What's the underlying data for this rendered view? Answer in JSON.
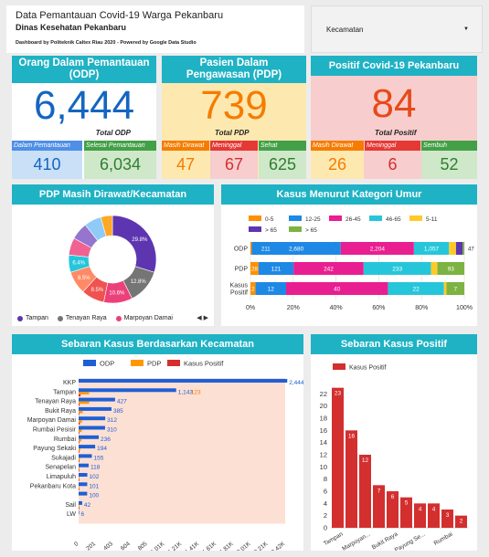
{
  "header": {
    "title": "Data Pemantauan Covid-19 Warga Pekanbaru",
    "subtitle": "Dinas Kesehatan Pekanbaru",
    "credit": "Dashboard by Politeknik Caltex Riau 2020 - Powered by Google Data Studio"
  },
  "filter": {
    "label": "Kecamatan"
  },
  "odp": {
    "title": "Orang Dalam Pemantauan (ODP)",
    "total": "6,444",
    "total_label": "Total ODP",
    "sub": [
      {
        "label": "Dalam Pemantauan",
        "value": "410"
      },
      {
        "label": "Selesai Pemantauan",
        "value": "6,034"
      }
    ]
  },
  "pdp": {
    "title": "Pasien Dalam Pengawasan (PDP)",
    "total": "739",
    "total_label": "Total PDP",
    "sub": [
      {
        "label": "Masih Dirawat",
        "value": "47"
      },
      {
        "label": "Meninggal",
        "value": "67"
      },
      {
        "label": "Sehat",
        "value": "625"
      }
    ]
  },
  "positif": {
    "title": "Positif Covid-19 Pekanbaru",
    "total": "84",
    "total_label": "Total Positif",
    "sub": [
      {
        "label": "Masih Dirawat",
        "value": "26"
      },
      {
        "label": "Meninggal",
        "value": "6"
      },
      {
        "label": "Sembuh",
        "value": "52"
      }
    ]
  },
  "colors": {
    "teal": "#1fb2c4",
    "blue": "#1565c0",
    "orange": "#f57c00",
    "red": "#d32f2f",
    "green": "#2e7d32"
  },
  "donut": {
    "title": "PDP Masih Dirawat/Kecamatan",
    "legend": [
      "Tampan",
      "Tenayan Raya",
      "Marpoyan Damai"
    ],
    "legend_colors": [
      "#5e35b1",
      "#757575",
      "#ec407a"
    ],
    "pager": "◀ ▶"
  },
  "umur": {
    "title": "Kasus Menurut Kategori Umur",
    "legend_text": [
      "0-5",
      "12-25",
      "26-45",
      "46-65",
      "5-11",
      "> 65",
      "> 65"
    ],
    "x_ticks": [
      "0%",
      "20%",
      "40%",
      "60%",
      "80%",
      "100%"
    ]
  },
  "kecamatan": {
    "title": "Sebaran Kasus Berdasarkan Kecamatan",
    "legend": [
      "ODP",
      "PDP",
      "Kasus Positif"
    ],
    "x_ticks": [
      "0",
      "201",
      "403",
      "604",
      "805",
      "1.01K",
      "1.21K",
      "1.41K",
      "1.61K",
      "1.81K",
      "2.01K",
      "2.21K",
      "2.42K"
    ]
  },
  "positif_chart": {
    "title": "Sebaran Kasus Positif",
    "legend": "Kasus Positif",
    "y_ticks": [
      "0",
      "2",
      "4",
      "6",
      "8",
      "10",
      "12",
      "14",
      "16",
      "18",
      "20",
      "22"
    ],
    "x_labels": [
      "Tampan",
      "Marpoyan...",
      "Bukit Raya",
      "Payung Se...",
      "Rumbai"
    ]
  },
  "chart_data": [
    {
      "type": "pie",
      "title": "PDP Masih Dirawat/Kecamatan",
      "slices": [
        {
          "label": "Tampan",
          "value": 29.8,
          "color": "#5e35b1"
        },
        {
          "label": "Tenayan Raya",
          "value": 12.8,
          "color": "#757575"
        },
        {
          "label": "Marpoyan Damai",
          "value": 10.6,
          "color": "#ec407a"
        },
        {
          "label": "",
          "value": 8.5,
          "color": "#ef5350"
        },
        {
          "label": "",
          "value": 8.5,
          "color": "#ff8a65"
        },
        {
          "label": "",
          "value": 6.4,
          "color": "#26c6da"
        },
        {
          "label": "",
          "value": 6.4,
          "color": "#f06292"
        },
        {
          "label": "",
          "value": 6.4,
          "color": "#9575cd"
        },
        {
          "label": "",
          "value": 6.3,
          "color": "#90caf9"
        },
        {
          "label": "",
          "value": 4.3,
          "color": "#ffa726"
        }
      ],
      "shown_labels": [
        "29.8%",
        "12.8%",
        "10.6%",
        "8.5%",
        "8.5%",
        "6.4%"
      ]
    },
    {
      "type": "bar",
      "orientation": "horizontal-stacked-100",
      "title": "Kasus Menurut Kategori Umur",
      "categories": [
        "ODP",
        "PDP",
        "Kasus Positif"
      ],
      "series": [
        {
          "name": "0-5",
          "color": "#ff8f00",
          "values": [
            40,
            28,
            2
          ],
          "labels": [
            "",
            "28",
            "2"
          ]
        },
        {
          "name": "12-25",
          "color": "#1e88e5",
          "values": [
            2680,
            121,
            12
          ],
          "labels": [
            "2,680",
            "121",
            "12"
          ]
        },
        {
          "name": "26-45",
          "color": "#e91e90",
          "values": [
            2204,
            242,
            40
          ],
          "labels": [
            "2,204",
            "242",
            "40"
          ]
        },
        {
          "name": "46-65",
          "color": "#26c6da",
          "values": [
            1057,
            233,
            22
          ],
          "labels": [
            "1,057",
            "233",
            "22"
          ]
        },
        {
          "name": "5-11",
          "color": "#ffca28",
          "values": [
            211,
            22,
            1
          ],
          "labels": [
            "",
            "",
            ""
          ]
        },
        {
          "name": "> 65",
          "color": "#5e35b1",
          "values": [
            200,
            0,
            0
          ],
          "labels": [
            "",
            "",
            ""
          ]
        },
        {
          "name": "> 65",
          "color": "#7cb342",
          "values": [
            50,
            93,
            7
          ],
          "labels": [
            "",
            "93",
            "7"
          ]
        }
      ],
      "extra_labels": [
        "211",
        "47"
      ],
      "xlabels": [
        "0%",
        "20%",
        "40%",
        "60%",
        "80%",
        "100%"
      ]
    },
    {
      "type": "bar",
      "orientation": "horizontal",
      "title": "Sebaran Kasus Berdasarkan Kecamatan",
      "categories": [
        "KKP",
        "Tampan",
        "Tenayan Raya",
        "Bukit Raya",
        "Marpoyan Damai",
        "Rumbai Pesisir",
        "Rumbai",
        "Payung Sekaki",
        "Sukajadi",
        "Senapelan",
        "Limapuluh",
        "Pekanbaru Kota",
        "",
        "Sail",
        "LW"
      ],
      "series": [
        {
          "name": "ODP",
          "color": "#1e5fd6",
          "values": [
            2444,
            1143,
            427,
            385,
            312,
            310,
            236,
            194,
            155,
            118,
            102,
            101,
            100,
            42,
            6
          ],
          "labels": [
            "2,444",
            "1,143",
            "427",
            "385",
            "312",
            "310",
            "236",
            "194",
            "155",
            "118",
            "102",
            "101",
            "100",
            "42",
            "6"
          ]
        },
        {
          "name": "PDP",
          "color": "#ff9800",
          "values": [
            0,
            123,
            123,
            48,
            40,
            36,
            32,
            20,
            15,
            10,
            8,
            6,
            0,
            5,
            0
          ],
          "labels": [
            "",
            "123",
            "",
            "",
            "",
            "",
            "",
            "",
            "",
            "",
            "",
            "",
            "",
            "",
            ""
          ]
        },
        {
          "name": "Kasus Positif",
          "color": "#d32f2f",
          "values": [
            0,
            23,
            12,
            7,
            16,
            2,
            3,
            4,
            2,
            1,
            1,
            1,
            0,
            1,
            0
          ]
        }
      ],
      "xlim": [
        0,
        2420
      ],
      "xlabels": [
        "0",
        "201",
        "403",
        "604",
        "805",
        "1.01K",
        "1.21K",
        "1.41K",
        "1.61K",
        "1.81K",
        "2.01K",
        "2.21K",
        "2.42K"
      ]
    },
    {
      "type": "bar",
      "title": "Sebaran Kasus Positif",
      "series": [
        {
          "name": "Kasus Positif",
          "color": "#d32f2f",
          "values": [
            23,
            16,
            12,
            7,
            6,
            5,
            4,
            4,
            3,
            2
          ]
        }
      ],
      "x_labels": [
        "Tampan",
        "Marpoyan...",
        "Bukit Raya",
        "Payung Se...",
        "Rumbai"
      ],
      "ylim": [
        0,
        24
      ],
      "yticks": [
        "0",
        "2",
        "4",
        "6",
        "8",
        "10",
        "12",
        "14",
        "16",
        "18",
        "20",
        "22"
      ]
    }
  ]
}
